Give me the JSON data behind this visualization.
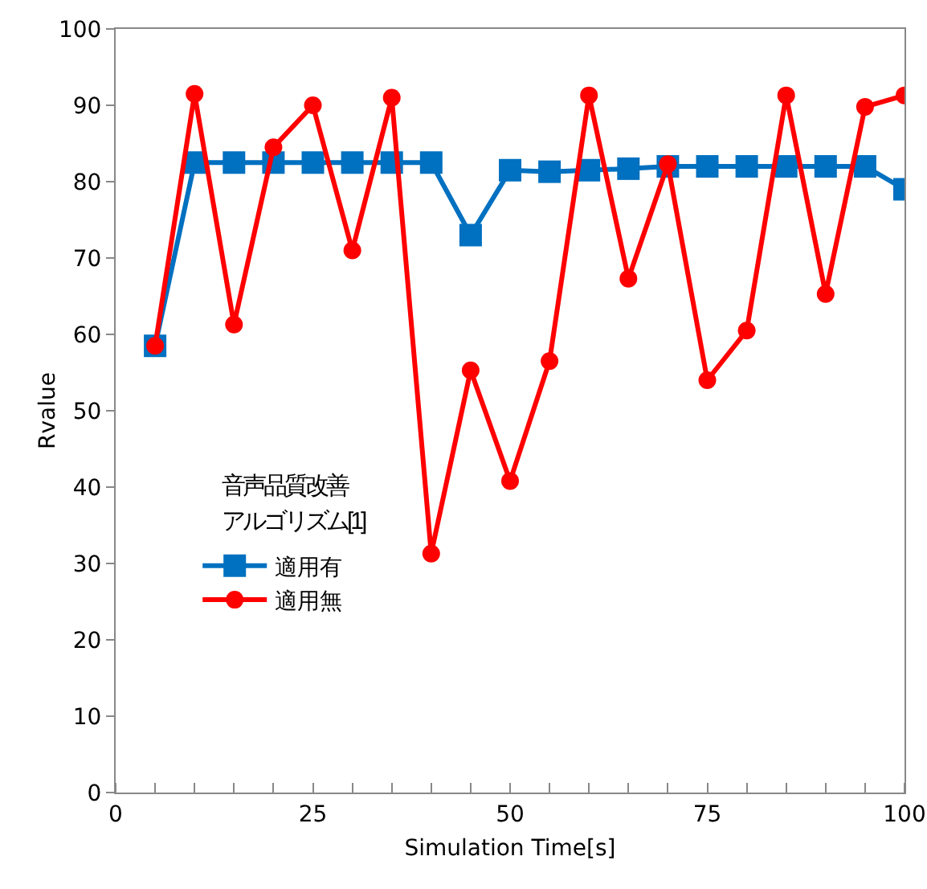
{
  "chart_data": {
    "type": "line",
    "xlabel": "Simulation Time[s]",
    "ylabel": "Rvalue",
    "legend_title": "音声品質改善アルゴリズム[1]",
    "legend": "left",
    "grid": false,
    "x": [
      5,
      10,
      15,
      20,
      25,
      30,
      35,
      40,
      45,
      50,
      55,
      60,
      65,
      70,
      75,
      80,
      85,
      90,
      95,
      100
    ],
    "xlim": [
      0,
      100
    ],
    "xticks": [
      0,
      25,
      50,
      75,
      100
    ],
    "ylim": [
      0,
      100
    ],
    "yticks": [
      0,
      10,
      20,
      30,
      40,
      50,
      60,
      70,
      80,
      90,
      100
    ],
    "series": [
      {
        "name": "適用有",
        "color": "#0070c0",
        "marker": "square",
        "values": [
          58.5,
          82.5,
          82.5,
          82.5,
          82.5,
          82.5,
          82.5,
          82.5,
          73,
          81.5,
          81.3,
          81.5,
          81.7,
          82,
          82,
          82,
          82,
          82,
          82,
          79
        ]
      },
      {
        "name": "適用無",
        "color": "#ff0000",
        "marker": "circle",
        "values": [
          58.5,
          91.5,
          61.3,
          84.5,
          90,
          71,
          91,
          31.3,
          55.3,
          40.8,
          56.5,
          91.3,
          67.3,
          82.3,
          54,
          60.5,
          91.3,
          65.3,
          89.8,
          91.3
        ]
      }
    ]
  }
}
